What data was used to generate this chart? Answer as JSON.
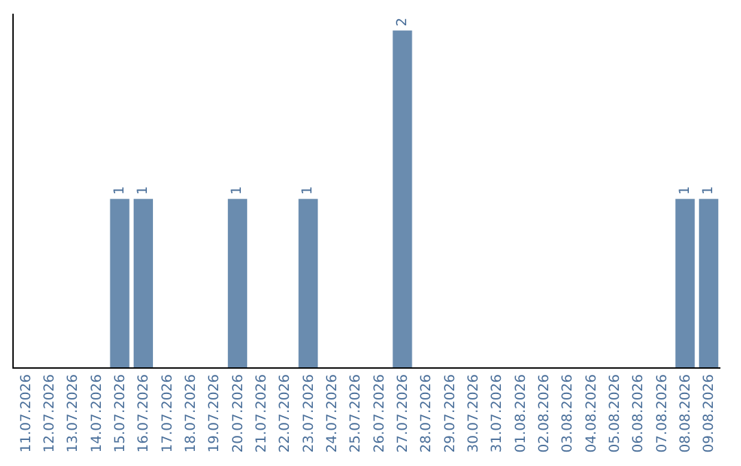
{
  "chart_data": {
    "type": "bar",
    "categories": [
      "11.07.2026",
      "12.07.2026",
      "13.07.2026",
      "14.07.2026",
      "15.07.2026",
      "16.07.2026",
      "17.07.2026",
      "18.07.2026",
      "19.07.2026",
      "20.07.2026",
      "21.07.2026",
      "22.07.2026",
      "23.07.2026",
      "24.07.2026",
      "25.07.2026",
      "26.07.2026",
      "27.07.2026",
      "28.07.2026",
      "29.07.2026",
      "30.07.2026",
      "31.07.2026",
      "01.08.2026",
      "02.08.2026",
      "03.08.2026",
      "04.08.2026",
      "05.08.2026",
      "06.08.2026",
      "07.08.2026",
      "08.08.2026",
      "09.08.2026"
    ],
    "values": [
      0,
      0,
      0,
      0,
      1,
      1,
      0,
      0,
      0,
      1,
      0,
      0,
      1,
      0,
      0,
      0,
      2,
      0,
      0,
      0,
      0,
      0,
      0,
      0,
      0,
      0,
      0,
      0,
      1,
      1
    ],
    "value_labels": [
      null,
      null,
      null,
      null,
      "1",
      "1",
      null,
      null,
      null,
      "1",
      null,
      null,
      "1",
      null,
      null,
      null,
      "2",
      null,
      null,
      null,
      null,
      null,
      null,
      null,
      null,
      null,
      null,
      null,
      "1",
      "1"
    ],
    "color": "#6a8caf",
    "ylim": [
      0,
      2.1
    ],
    "grid": false,
    "legend": false,
    "tick_labels": "x"
  }
}
